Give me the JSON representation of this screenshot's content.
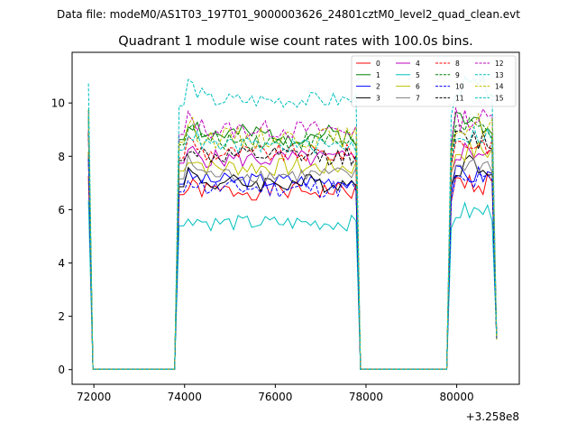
{
  "chart_data": {
    "type": "line",
    "suptitle": "Data file: modeM0/AS1T03_197T01_9000003626_24801cztM0_level2_quad_clean.evt",
    "title": "Quadrant 1 module wise count rates with 100.0s bins.",
    "xlabel": "",
    "ylabel": "",
    "offset_text": "+3.258e8",
    "xlim": [
      71520,
      81380
    ],
    "ylim": [
      -0.55,
      11.9
    ],
    "xticks": [
      72000,
      74000,
      76000,
      78000,
      80000
    ],
    "yticks": [
      0,
      2,
      4,
      6,
      8,
      10
    ],
    "xtick_labels": [
      "72000",
      "74000",
      "76000",
      "78000",
      "80000"
    ],
    "ytick_labels": [
      "0",
      "2",
      "4",
      "6",
      "8",
      "10"
    ],
    "grid": false,
    "legend_position": "top-right",
    "segments": [
      [
        71880,
        77880
      ],
      [
        79880,
        80880
      ]
    ],
    "series": [
      {
        "name": "0",
        "color": "#ff0000",
        "dash": "solid",
        "level": 6.7,
        "peak": 6.6,
        "post": 7.0,
        "amp": 0.35,
        "seed": 1
      },
      {
        "name": "1",
        "color": "#008000",
        "dash": "solid",
        "level": 8.8,
        "peak": 9.2,
        "post": 9.3,
        "amp": 0.4,
        "seed": 2
      },
      {
        "name": "2",
        "color": "#0000ff",
        "dash": "solid",
        "level": 7.1,
        "peak": 7.0,
        "post": 7.3,
        "amp": 0.3,
        "seed": 3
      },
      {
        "name": "3",
        "color": "#000000",
        "dash": "solid",
        "level": 7.0,
        "peak": 7.2,
        "post": 7.7,
        "amp": 0.35,
        "seed": 4
      },
      {
        "name": "4",
        "color": "#bf00bf",
        "dash": "solid",
        "level": 7.9,
        "peak": 8.0,
        "post": 8.2,
        "amp": 0.35,
        "seed": 5
      },
      {
        "name": "5",
        "color": "#00bfbf",
        "dash": "solid",
        "level": 5.5,
        "peak": 5.5,
        "post": 5.9,
        "amp": 0.3,
        "seed": 6
      },
      {
        "name": "6",
        "color": "#bfbf00",
        "dash": "solid",
        "level": 7.6,
        "peak": 7.8,
        "post": 8.2,
        "amp": 0.35,
        "seed": 7
      },
      {
        "name": "7",
        "color": "#808080",
        "dash": "solid",
        "level": 7.3,
        "peak": 7.6,
        "post": 7.7,
        "amp": 0.3,
        "seed": 8
      },
      {
        "name": "8",
        "color": "#ff0000",
        "dash": "dashed",
        "level": 8.1,
        "peak": 8.4,
        "post": 8.5,
        "amp": 0.35,
        "seed": 9
      },
      {
        "name": "9",
        "color": "#008000",
        "dash": "dashed",
        "level": 8.6,
        "peak": 8.8,
        "post": 9.0,
        "amp": 0.35,
        "seed": 10
      },
      {
        "name": "10",
        "color": "#0000ff",
        "dash": "dashed",
        "level": 6.8,
        "peak": 7.0,
        "post": 7.0,
        "amp": 0.35,
        "seed": 11
      },
      {
        "name": "11",
        "color": "#000000",
        "dash": "dashed",
        "level": 8.0,
        "peak": 8.2,
        "post": 8.6,
        "amp": 0.35,
        "seed": 12
      },
      {
        "name": "12",
        "color": "#bf00bf",
        "dash": "dashed",
        "level": 9.0,
        "peak": 9.2,
        "post": 9.4,
        "amp": 0.35,
        "seed": 13
      },
      {
        "name": "13",
        "color": "#00bfbf",
        "dash": "dashed",
        "level": 10.1,
        "peak": 10.6,
        "post": 10.6,
        "amp": 0.3,
        "seed": 14
      },
      {
        "name": "14",
        "color": "#bfbf00",
        "dash": "dashed",
        "level": 8.7,
        "peak": 9.0,
        "post": 9.2,
        "amp": 0.4,
        "seed": 15
      },
      {
        "name": "15",
        "color": "#00bfbf",
        "dash": "dashed",
        "level": 8.4,
        "peak": 8.7,
        "post": 8.8,
        "amp": 0.3,
        "seed": 16
      }
    ]
  }
}
